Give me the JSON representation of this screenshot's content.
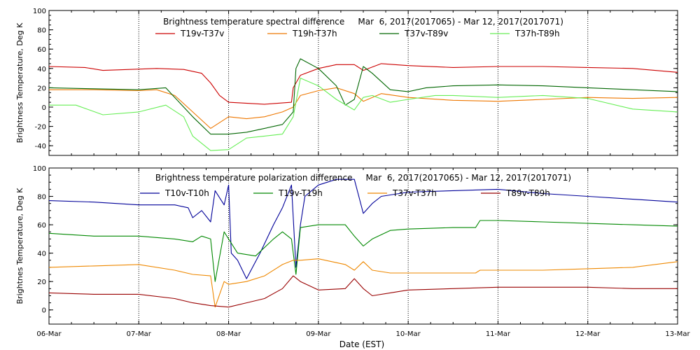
{
  "x_axis": {
    "label": "Date (EST)",
    "ticks": [
      "06-Mar",
      "07-Mar",
      "08-Mar",
      "09-Mar",
      "10-Mar",
      "11-Mar",
      "12-Mar",
      "13-Mar"
    ]
  },
  "chart_data": [
    {
      "type": "line",
      "title": "Brightness temperature spectral difference     Mar  6, 2017(2017065) - Mar 12, 2017(2017071)",
      "ylabel": "Brightness Temperature, Deg K",
      "xlim": [
        0,
        7
      ],
      "ylim": [
        -50,
        100
      ],
      "yticks": [
        -40,
        -20,
        0,
        20,
        40,
        60,
        80,
        100
      ],
      "grid": "vertical dotted at day boundaries",
      "legend": "top",
      "series": [
        {
          "name": "T19v-T37v",
          "color": "#cc0000",
          "points": [
            [
              0,
              42
            ],
            [
              0.4,
              41
            ],
            [
              0.6,
              38
            ],
            [
              1.2,
              40
            ],
            [
              1.5,
              39
            ],
            [
              1.7,
              35
            ],
            [
              1.8,
              25
            ],
            [
              1.9,
              12
            ],
            [
              2.0,
              5
            ],
            [
              2.4,
              3
            ],
            [
              2.7,
              5
            ],
            [
              2.72,
              20
            ],
            [
              2.8,
              33
            ],
            [
              3.0,
              40
            ],
            [
              3.2,
              44
            ],
            [
              3.4,
              44
            ],
            [
              3.5,
              38
            ],
            [
              3.7,
              45
            ],
            [
              4.0,
              43
            ],
            [
              4.5,
              41
            ],
            [
              5.0,
              42
            ],
            [
              5.5,
              42
            ],
            [
              6.0,
              41
            ],
            [
              6.5,
              40
            ],
            [
              7.0,
              36
            ]
          ]
        },
        {
          "name": "T19h-T37h",
          "color": "#ee7700",
          "points": [
            [
              0,
              18
            ],
            [
              0.5,
              18
            ],
            [
              1.0,
              17
            ],
            [
              1.2,
              18
            ],
            [
              1.4,
              12
            ],
            [
              1.6,
              -5
            ],
            [
              1.8,
              -22
            ],
            [
              2.0,
              -10
            ],
            [
              2.2,
              -12
            ],
            [
              2.4,
              -10
            ],
            [
              2.6,
              -5
            ],
            [
              2.72,
              0
            ],
            [
              2.8,
              12
            ],
            [
              3.0,
              17
            ],
            [
              3.2,
              20
            ],
            [
              3.4,
              14
            ],
            [
              3.5,
              6
            ],
            [
              3.7,
              14
            ],
            [
              4.0,
              10
            ],
            [
              4.5,
              7
            ],
            [
              5.0,
              6
            ],
            [
              5.5,
              8
            ],
            [
              6.0,
              10
            ],
            [
              6.5,
              9
            ],
            [
              7.0,
              10
            ]
          ]
        },
        {
          "name": "T37v-T89v",
          "color": "#006600",
          "points": [
            [
              0,
              20
            ],
            [
              0.5,
              19
            ],
            [
              1.0,
              18
            ],
            [
              1.3,
              20
            ],
            [
              1.4,
              10
            ],
            [
              1.6,
              -10
            ],
            [
              1.8,
              -28
            ],
            [
              2.0,
              -28
            ],
            [
              2.2,
              -26
            ],
            [
              2.4,
              -22
            ],
            [
              2.6,
              -18
            ],
            [
              2.72,
              -5
            ],
            [
              2.75,
              40
            ],
            [
              2.8,
              50
            ],
            [
              3.0,
              40
            ],
            [
              3.2,
              22
            ],
            [
              3.3,
              2
            ],
            [
              3.4,
              8
            ],
            [
              3.5,
              42
            ],
            [
              3.6,
              35
            ],
            [
              3.8,
              18
            ],
            [
              4.0,
              16
            ],
            [
              4.2,
              20
            ],
            [
              4.5,
              22
            ],
            [
              5.0,
              23
            ],
            [
              5.5,
              22
            ],
            [
              6.0,
              20
            ],
            [
              6.5,
              18
            ],
            [
              7.0,
              16
            ]
          ]
        },
        {
          "name": "T37h-T89h",
          "color": "#66ee55",
          "points": [
            [
              0,
              2
            ],
            [
              0.3,
              2
            ],
            [
              0.6,
              -8
            ],
            [
              1.0,
              -5
            ],
            [
              1.3,
              2
            ],
            [
              1.5,
              -10
            ],
            [
              1.6,
              -30
            ],
            [
              1.8,
              -45
            ],
            [
              2.0,
              -44
            ],
            [
              2.2,
              -32
            ],
            [
              2.4,
              -30
            ],
            [
              2.6,
              -28
            ],
            [
              2.72,
              -10
            ],
            [
              2.8,
              30
            ],
            [
              3.0,
              22
            ],
            [
              3.2,
              8
            ],
            [
              3.4,
              -3
            ],
            [
              3.5,
              10
            ],
            [
              3.6,
              12
            ],
            [
              3.8,
              5
            ],
            [
              4.0,
              8
            ],
            [
              4.3,
              12
            ],
            [
              4.5,
              12
            ],
            [
              5.0,
              10
            ],
            [
              5.5,
              12
            ],
            [
              6.0,
              9
            ],
            [
              6.5,
              -2
            ],
            [
              7.0,
              -5
            ]
          ]
        }
      ]
    },
    {
      "type": "line",
      "title": "Brightness temperature polarization difference     Mar  6, 2017(2017065) - Mar 12, 2017(2017071)",
      "ylabel": "Brightnes Temperature, Deg K",
      "xlim": [
        0,
        7
      ],
      "ylim": [
        -10,
        100
      ],
      "yticks": [
        0,
        20,
        40,
        60,
        80,
        100
      ],
      "grid": "vertical dotted at day boundaries",
      "legend": "top",
      "series": [
        {
          "name": "T10v-T10h",
          "color": "#000099",
          "points": [
            [
              0,
              77
            ],
            [
              0.5,
              76
            ],
            [
              1.0,
              74
            ],
            [
              1.4,
              74
            ],
            [
              1.55,
              72
            ],
            [
              1.6,
              65
            ],
            [
              1.7,
              70
            ],
            [
              1.8,
              62
            ],
            [
              1.85,
              84
            ],
            [
              1.95,
              74
            ],
            [
              2.0,
              88
            ],
            [
              2.03,
              40
            ],
            [
              2.1,
              35
            ],
            [
              2.2,
              22
            ],
            [
              2.35,
              40
            ],
            [
              2.5,
              60
            ],
            [
              2.6,
              72
            ],
            [
              2.7,
              88
            ],
            [
              2.75,
              30
            ],
            [
              2.8,
              60
            ],
            [
              2.85,
              80
            ],
            [
              3.0,
              88
            ],
            [
              3.2,
              92
            ],
            [
              3.4,
              92
            ],
            [
              3.45,
              80
            ],
            [
              3.5,
              68
            ],
            [
              3.6,
              75
            ],
            [
              3.7,
              80
            ],
            [
              4.0,
              83
            ],
            [
              4.5,
              84
            ],
            [
              5.0,
              85
            ],
            [
              5.5,
              82
            ],
            [
              6.0,
              80
            ],
            [
              6.5,
              78
            ],
            [
              7.0,
              76
            ]
          ]
        },
        {
          "name": "T19v-T19h",
          "color": "#008800",
          "points": [
            [
              0,
              54
            ],
            [
              0.5,
              52
            ],
            [
              1.0,
              52
            ],
            [
              1.4,
              50
            ],
            [
              1.6,
              48
            ],
            [
              1.7,
              52
            ],
            [
              1.8,
              50
            ],
            [
              1.85,
              20
            ],
            [
              1.95,
              55
            ],
            [
              2.0,
              50
            ],
            [
              2.1,
              40
            ],
            [
              2.3,
              38
            ],
            [
              2.5,
              50
            ],
            [
              2.6,
              55
            ],
            [
              2.7,
              50
            ],
            [
              2.75,
              25
            ],
            [
              2.8,
              58
            ],
            [
              3.0,
              60
            ],
            [
              3.3,
              60
            ],
            [
              3.4,
              52
            ],
            [
              3.5,
              45
            ],
            [
              3.6,
              50
            ],
            [
              3.8,
              56
            ],
            [
              4.0,
              57
            ],
            [
              4.5,
              58
            ],
            [
              4.75,
              58
            ],
            [
              4.8,
              63
            ],
            [
              5.0,
              63
            ],
            [
              5.5,
              62
            ],
            [
              6.0,
              61
            ],
            [
              6.5,
              60
            ],
            [
              7.0,
              59
            ]
          ]
        },
        {
          "name": "T37v-T37h",
          "color": "#ee8800",
          "points": [
            [
              0,
              30
            ],
            [
              0.5,
              31
            ],
            [
              1.0,
              32
            ],
            [
              1.4,
              28
            ],
            [
              1.6,
              25
            ],
            [
              1.8,
              24
            ],
            [
              1.85,
              2
            ],
            [
              1.95,
              20
            ],
            [
              2.0,
              18
            ],
            [
              2.2,
              20
            ],
            [
              2.4,
              24
            ],
            [
              2.6,
              32
            ],
            [
              2.72,
              35
            ],
            [
              2.8,
              35
            ],
            [
              3.0,
              36
            ],
            [
              3.3,
              32
            ],
            [
              3.4,
              28
            ],
            [
              3.5,
              34
            ],
            [
              3.6,
              28
            ],
            [
              3.8,
              26
            ],
            [
              4.0,
              26
            ],
            [
              4.5,
              26
            ],
            [
              4.75,
              26
            ],
            [
              4.8,
              28
            ],
            [
              5.5,
              28
            ],
            [
              6.0,
              29
            ],
            [
              6.5,
              30
            ],
            [
              7.0,
              34
            ]
          ]
        },
        {
          "name": "T89v-T89h",
          "color": "#990000",
          "points": [
            [
              0,
              12
            ],
            [
              0.5,
              11
            ],
            [
              1.0,
              11
            ],
            [
              1.4,
              8
            ],
            [
              1.6,
              5
            ],
            [
              1.8,
              3
            ],
            [
              2.0,
              2
            ],
            [
              2.2,
              5
            ],
            [
              2.4,
              8
            ],
            [
              2.6,
              15
            ],
            [
              2.72,
              24
            ],
            [
              2.8,
              20
            ],
            [
              3.0,
              14
            ],
            [
              3.3,
              15
            ],
            [
              3.4,
              22
            ],
            [
              3.5,
              15
            ],
            [
              3.6,
              10
            ],
            [
              3.8,
              12
            ],
            [
              4.0,
              14
            ],
            [
              4.5,
              15
            ],
            [
              5.0,
              16
            ],
            [
              5.5,
              16
            ],
            [
              6.0,
              16
            ],
            [
              6.5,
              15
            ],
            [
              7.0,
              15
            ]
          ]
        }
      ]
    }
  ]
}
